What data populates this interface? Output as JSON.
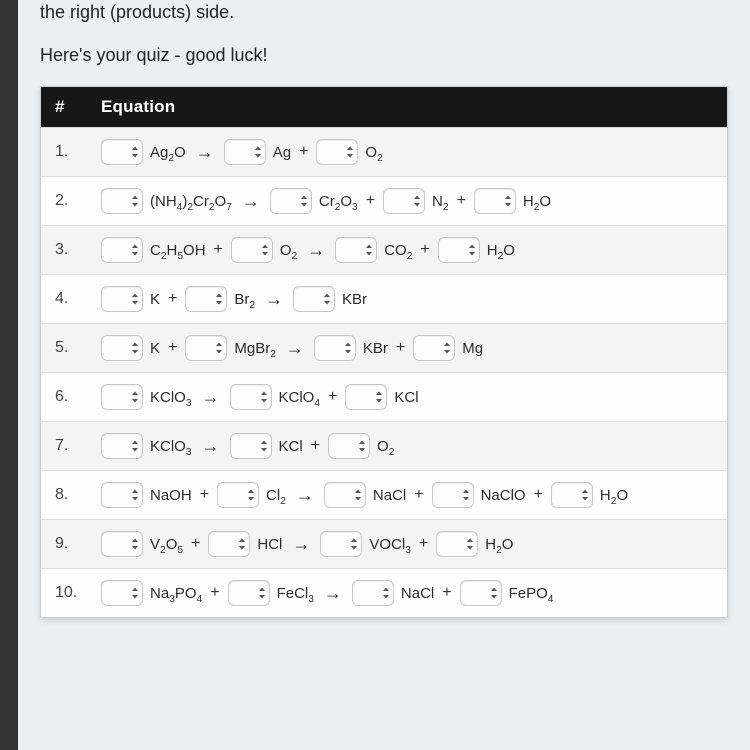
{
  "intro": {
    "line1": "the right (products) side.",
    "line2": "Here's your quiz - good luck!"
  },
  "table": {
    "header_num": "#",
    "header_eq": "Equation",
    "arrow_glyph": "→",
    "plus_glyph": "+",
    "stepper_icon_color": "#555555"
  },
  "rows": [
    {
      "n": "1.",
      "terms": [
        {
          "t": "coef"
        },
        {
          "t": "f",
          "html": "Ag<sub>2</sub>O"
        },
        {
          "t": "arrow"
        },
        {
          "t": "coef"
        },
        {
          "t": "f",
          "html": "Ag"
        },
        {
          "t": "plus"
        },
        {
          "t": "coef"
        },
        {
          "t": "f",
          "html": "O<sub>2</sub>"
        }
      ]
    },
    {
      "n": "2.",
      "terms": [
        {
          "t": "coef"
        },
        {
          "t": "f",
          "html": "(NH<sub>4</sub>)<sub>2</sub>Cr<sub>2</sub>O<sub>7</sub>"
        },
        {
          "t": "arrow"
        },
        {
          "t": "coef"
        },
        {
          "t": "f",
          "html": "Cr<sub>2</sub>O<sub>3</sub>"
        },
        {
          "t": "plus"
        },
        {
          "t": "coef"
        },
        {
          "t": "f",
          "html": "N<sub>2</sub>"
        },
        {
          "t": "plus"
        },
        {
          "t": "coef"
        },
        {
          "t": "f",
          "html": "H<sub>2</sub>O"
        }
      ]
    },
    {
      "n": "3.",
      "terms": [
        {
          "t": "coef"
        },
        {
          "t": "f",
          "html": "C<sub>2</sub>H<sub>5</sub>OH"
        },
        {
          "t": "plus"
        },
        {
          "t": "coef"
        },
        {
          "t": "f",
          "html": "O<sub>2</sub>"
        },
        {
          "t": "arrow"
        },
        {
          "t": "coef"
        },
        {
          "t": "f",
          "html": "CO<sub>2</sub>"
        },
        {
          "t": "plus"
        },
        {
          "t": "coef"
        },
        {
          "t": "f",
          "html": "H<sub>2</sub>O"
        }
      ]
    },
    {
      "n": "4.",
      "terms": [
        {
          "t": "coef"
        },
        {
          "t": "f",
          "html": "K"
        },
        {
          "t": "plus"
        },
        {
          "t": "coef"
        },
        {
          "t": "f",
          "html": "Br<sub>2</sub>"
        },
        {
          "t": "arrow"
        },
        {
          "t": "coef"
        },
        {
          "t": "f",
          "html": "KBr"
        }
      ]
    },
    {
      "n": "5.",
      "terms": [
        {
          "t": "coef"
        },
        {
          "t": "f",
          "html": "K"
        },
        {
          "t": "plus"
        },
        {
          "t": "coef"
        },
        {
          "t": "f",
          "html": "MgBr<sub>2</sub>"
        },
        {
          "t": "arrow"
        },
        {
          "t": "coef"
        },
        {
          "t": "f",
          "html": "KBr"
        },
        {
          "t": "plus"
        },
        {
          "t": "coef"
        },
        {
          "t": "f",
          "html": "Mg"
        }
      ]
    },
    {
      "n": "6.",
      "terms": [
        {
          "t": "coef"
        },
        {
          "t": "f",
          "html": "KClO<sub>3</sub>"
        },
        {
          "t": "arrow"
        },
        {
          "t": "coef"
        },
        {
          "t": "f",
          "html": "KClO<sub>4</sub>"
        },
        {
          "t": "plus"
        },
        {
          "t": "coef"
        },
        {
          "t": "f",
          "html": "KCl"
        }
      ]
    },
    {
      "n": "7.",
      "terms": [
        {
          "t": "coef"
        },
        {
          "t": "f",
          "html": "KClO<sub>3</sub>"
        },
        {
          "t": "arrow"
        },
        {
          "t": "coef"
        },
        {
          "t": "f",
          "html": "KCl"
        },
        {
          "t": "plus"
        },
        {
          "t": "coef"
        },
        {
          "t": "f",
          "html": "O<sub>2</sub>"
        }
      ]
    },
    {
      "n": "8.",
      "terms": [
        {
          "t": "coef"
        },
        {
          "t": "f",
          "html": "NaOH"
        },
        {
          "t": "plus"
        },
        {
          "t": "coef"
        },
        {
          "t": "f",
          "html": "Cl<sub>2</sub>"
        },
        {
          "t": "arrow"
        },
        {
          "t": "coef"
        },
        {
          "t": "f",
          "html": "NaCl"
        },
        {
          "t": "plus"
        },
        {
          "t": "coef"
        },
        {
          "t": "f",
          "html": "NaClO"
        },
        {
          "t": "plus"
        },
        {
          "t": "coef"
        },
        {
          "t": "f",
          "html": "H<sub>2</sub>O"
        }
      ]
    },
    {
      "n": "9.",
      "terms": [
        {
          "t": "coef"
        },
        {
          "t": "f",
          "html": "V<sub>2</sub>O<sub>5</sub>"
        },
        {
          "t": "plus"
        },
        {
          "t": "coef"
        },
        {
          "t": "f",
          "html": "HCl"
        },
        {
          "t": "arrow"
        },
        {
          "t": "coef"
        },
        {
          "t": "f",
          "html": "VOCl<sub>3</sub>"
        },
        {
          "t": "plus"
        },
        {
          "t": "coef"
        },
        {
          "t": "f",
          "html": "H<sub>2</sub>O"
        }
      ]
    },
    {
      "n": "10.",
      "terms": [
        {
          "t": "coef"
        },
        {
          "t": "f",
          "html": "Na<sub>3</sub>PO<sub>4</sub>"
        },
        {
          "t": "plus"
        },
        {
          "t": "coef"
        },
        {
          "t": "f",
          "html": "FeCl<sub>3</sub>"
        },
        {
          "t": "arrow"
        },
        {
          "t": "coef"
        },
        {
          "t": "f",
          "html": "NaCl"
        },
        {
          "t": "plus"
        },
        {
          "t": "coef"
        },
        {
          "t": "f",
          "html": "FePO<sub>4</sub>"
        }
      ]
    }
  ]
}
